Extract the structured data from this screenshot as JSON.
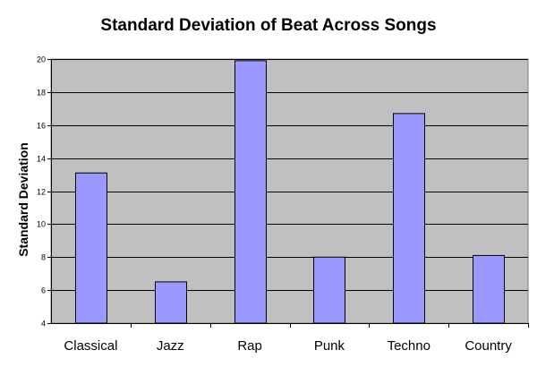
{
  "chart_data": {
    "type": "bar",
    "title": "Standard Deviation of Beat Across Songs",
    "xlabel": "",
    "ylabel": "Standard Deviation",
    "categories": [
      "Classical",
      "Jazz",
      "Rap",
      "Punk",
      "Techno",
      "Country"
    ],
    "values": [
      13.1,
      6.5,
      19.9,
      8.0,
      16.7,
      8.1
    ],
    "ylim": [
      4,
      20
    ],
    "yticks": [
      "4",
      "6",
      "8",
      "10",
      "12",
      "14",
      "16",
      "18",
      "20"
    ],
    "grid": true,
    "legend": "none",
    "colors": {
      "bar_fill": "#9999ff",
      "bar_stroke": "#000000",
      "plot_background": "#c0c0c0",
      "gridline": "#000000"
    }
  }
}
